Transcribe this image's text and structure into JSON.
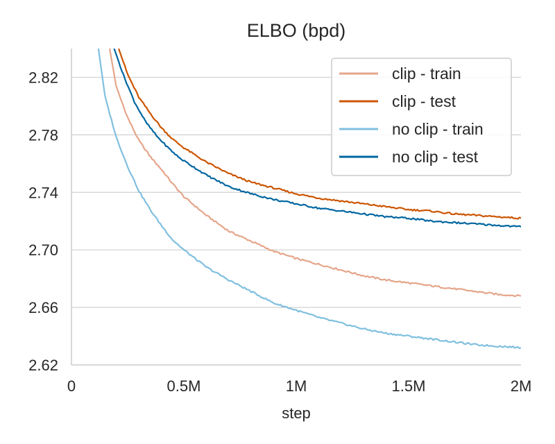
{
  "chart_data": {
    "type": "line",
    "title": "ELBO (bpd)",
    "xlabel": "step",
    "ylabel": "",
    "xlim": [
      0,
      2000000
    ],
    "ylim": [
      2.62,
      2.84
    ],
    "xticks": [
      0,
      500000,
      1000000,
      1500000,
      2000000
    ],
    "xtick_labels": [
      "0",
      "0.5M",
      "1M",
      "1.5M",
      "2M"
    ],
    "yticks": [
      2.62,
      2.66,
      2.7,
      2.74,
      2.78,
      2.82
    ],
    "ytick_labels": [
      "2.62",
      "2.66",
      "2.70",
      "2.74",
      "2.78",
      "2.82"
    ],
    "grid": "horizontal",
    "legend_position": "top-right",
    "series": [
      {
        "name": "clip - train",
        "color": "#e5a58a",
        "x": [
          170000,
          200000,
          250000,
          300000,
          350000,
          400000,
          450000,
          500000,
          600000,
          700000,
          800000,
          900000,
          1000000,
          1100000,
          1200000,
          1300000,
          1400000,
          1500000,
          1600000,
          1700000,
          1800000,
          1900000,
          2000000
        ],
        "y": [
          2.84,
          2.813,
          2.792,
          2.776,
          2.765,
          2.756,
          2.746,
          2.737,
          2.724,
          2.713,
          2.706,
          2.699,
          2.694,
          2.69,
          2.686,
          2.682,
          2.679,
          2.677,
          2.675,
          2.673,
          2.671,
          2.669,
          2.668
        ]
      },
      {
        "name": "clip - test",
        "color": "#cc5500",
        "x": [
          210000,
          250000,
          300000,
          350000,
          400000,
          450000,
          500000,
          600000,
          700000,
          800000,
          900000,
          1000000,
          1100000,
          1200000,
          1300000,
          1400000,
          1500000,
          1600000,
          1700000,
          1800000,
          1900000,
          2000000
        ],
        "y": [
          2.84,
          2.822,
          2.806,
          2.795,
          2.785,
          2.777,
          2.771,
          2.761,
          2.753,
          2.747,
          2.743,
          2.739,
          2.736,
          2.734,
          2.732,
          2.73,
          2.728,
          2.727,
          2.725,
          2.724,
          2.723,
          2.722
        ]
      },
      {
        "name": "no clip - train",
        "color": "#7fbfdf",
        "x": [
          120000,
          150000,
          200000,
          250000,
          300000,
          350000,
          400000,
          450000,
          500000,
          600000,
          700000,
          800000,
          900000,
          1000000,
          1100000,
          1200000,
          1300000,
          1400000,
          1500000,
          1600000,
          1700000,
          1800000,
          1900000,
          2000000
        ],
        "y": [
          2.84,
          2.806,
          2.778,
          2.758,
          2.741,
          2.728,
          2.717,
          2.707,
          2.7,
          2.688,
          2.679,
          2.671,
          2.663,
          2.658,
          2.653,
          2.649,
          2.645,
          2.642,
          2.64,
          2.638,
          2.636,
          2.634,
          2.633,
          2.632
        ]
      },
      {
        "name": "no clip - test",
        "color": "#0066a0",
        "x": [
          190000,
          230000,
          280000,
          330000,
          380000,
          430000,
          480000,
          500000,
          600000,
          700000,
          800000,
          900000,
          1000000,
          1100000,
          1200000,
          1300000,
          1400000,
          1500000,
          1600000,
          1700000,
          1800000,
          1900000,
          2000000
        ],
        "y": [
          2.84,
          2.822,
          2.803,
          2.789,
          2.779,
          2.771,
          2.764,
          2.762,
          2.752,
          2.744,
          2.739,
          2.735,
          2.732,
          2.729,
          2.727,
          2.725,
          2.723,
          2.722,
          2.72,
          2.719,
          2.718,
          2.717,
          2.716
        ]
      }
    ]
  }
}
